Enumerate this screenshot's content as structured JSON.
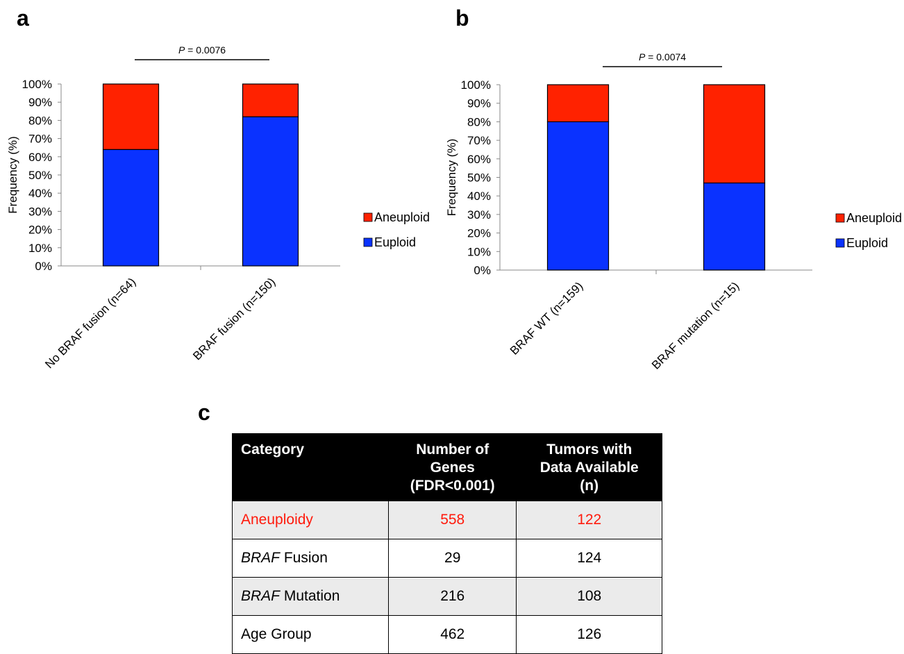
{
  "panel_labels": {
    "a": "a",
    "b": "b",
    "c": "c"
  },
  "colors": {
    "aneuploid": "#ff2200",
    "euploid": "#0a32ff",
    "highlight_text": "#ff1a0c"
  },
  "chart_data": [
    {
      "type": "bar",
      "stacked": true,
      "categories": [
        "No BRAF fusion (n=64)",
        "BRAF fusion (n=150)"
      ],
      "series": [
        {
          "name": "Euploid",
          "color": "#0a32ff",
          "values": [
            64,
            82
          ]
        },
        {
          "name": "Aneuploid",
          "color": "#ff2200",
          "values": [
            36,
            18
          ]
        }
      ],
      "ylabel": "Frequency (%)",
      "ylim": [
        0,
        100
      ],
      "yticks": [
        "0%",
        "10%",
        "20%",
        "30%",
        "40%",
        "50%",
        "60%",
        "70%",
        "80%",
        "90%",
        "100%"
      ],
      "legend": [
        "Aneuploid",
        "Euploid"
      ],
      "legend_position": "right",
      "annotation": {
        "label": "P",
        "text": " = 0.0076"
      }
    },
    {
      "type": "bar",
      "stacked": true,
      "categories": [
        "BRAF WT (n=159)",
        "BRAF mutation (n=15)"
      ],
      "series": [
        {
          "name": "Euploid",
          "color": "#0a32ff",
          "values": [
            80,
            47
          ]
        },
        {
          "name": "Aneuploid",
          "color": "#ff2200",
          "values": [
            20,
            53
          ]
        }
      ],
      "ylabel": "Frequency (%)",
      "ylim": [
        0,
        100
      ],
      "yticks": [
        "0%",
        "10%",
        "20%",
        "30%",
        "40%",
        "50%",
        "60%",
        "70%",
        "80%",
        "90%",
        "100%"
      ],
      "legend": [
        "Aneuploid",
        "Euploid"
      ],
      "legend_position": "right",
      "annotation": {
        "label": "P",
        "text": " = 0.0074"
      }
    }
  ],
  "table": {
    "headers": {
      "category": "Category",
      "genes": [
        "Number of",
        "Genes",
        "(FDR<0.001)"
      ],
      "tumors": [
        "Tumors with",
        "Data Available",
        "(n)"
      ]
    },
    "rows": [
      {
        "category": "Aneuploidy",
        "genes": "558",
        "tumors": "122"
      },
      {
        "category_italic": "BRAF",
        "category": " Fusion",
        "genes": "29",
        "tumors": "124"
      },
      {
        "category_italic": "BRAF",
        "category": " Mutation",
        "genes": "216",
        "tumors": "108"
      },
      {
        "category": "Age Group",
        "genes": "462",
        "tumors": "126"
      }
    ]
  }
}
